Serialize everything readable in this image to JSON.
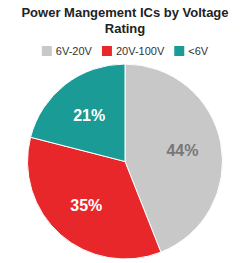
{
  "chart_data": {
    "type": "pie",
    "title": "Power Mangement ICs by Voltage Rating",
    "categories": [
      "6V-20V",
      "20V-100V",
      "<6V"
    ],
    "values": [
      44,
      35,
      21
    ],
    "value_labels": [
      "44%",
      "35%",
      "21%"
    ],
    "colors": [
      "#c8c8c8",
      "#e8272a",
      "#1a9b96"
    ],
    "data_labels": true,
    "legend": "top"
  }
}
